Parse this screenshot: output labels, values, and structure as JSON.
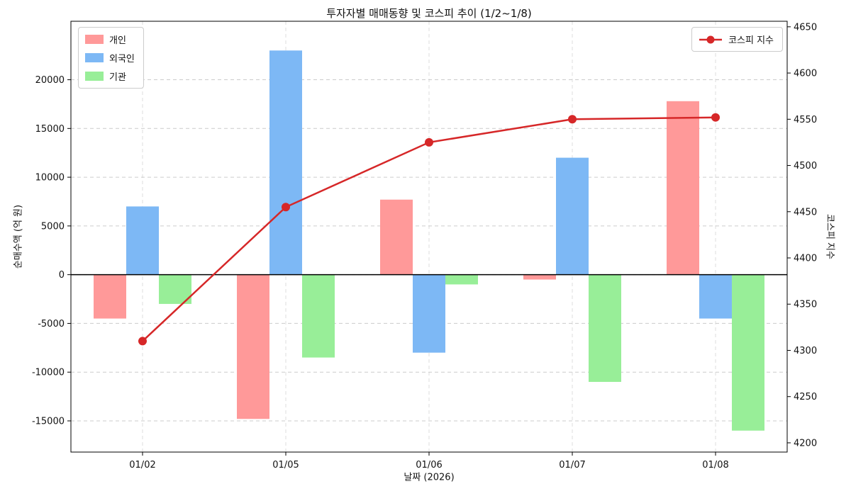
{
  "chart_data": {
    "type": "bar",
    "title": "투자자별 매매동향 및 코스피 추이 (1/2~1/8)",
    "xlabel": "날짜 (2026)",
    "ylabel_left": "순매수액 (억 원)",
    "ylabel_right": "코스피 지수",
    "categories": [
      "01/02",
      "01/05",
      "01/06",
      "01/07",
      "01/08"
    ],
    "bar_series": [
      {
        "name": "개인",
        "color": "#ff9999",
        "values": [
          -4500,
          -14800,
          7700,
          -500,
          17800
        ]
      },
      {
        "name": "외국인",
        "color": "#7db8f5",
        "values": [
          7000,
          23000,
          -8000,
          12000,
          -4500
        ]
      },
      {
        "name": "기관",
        "color": "#98ee98",
        "values": [
          -3000,
          -8500,
          -1000,
          -11000,
          -16000
        ]
      }
    ],
    "line_series": {
      "name": "코스피 지수",
      "color": "#d62728",
      "values": [
        4310,
        4455,
        4525,
        4550,
        4552
      ]
    },
    "axes": {
      "left": {
        "min": -18200,
        "max": 26000,
        "ticks": [
          -15000,
          -10000,
          -5000,
          0,
          5000,
          10000,
          15000,
          20000
        ]
      },
      "right": {
        "min": 4190,
        "max": 4656,
        "ticks": [
          4200,
          4250,
          4300,
          4350,
          4400,
          4450,
          4500,
          4550,
          4600,
          4650
        ]
      },
      "grid": "dashed",
      "legend_positions": [
        "upper left",
        "upper right"
      ]
    }
  }
}
